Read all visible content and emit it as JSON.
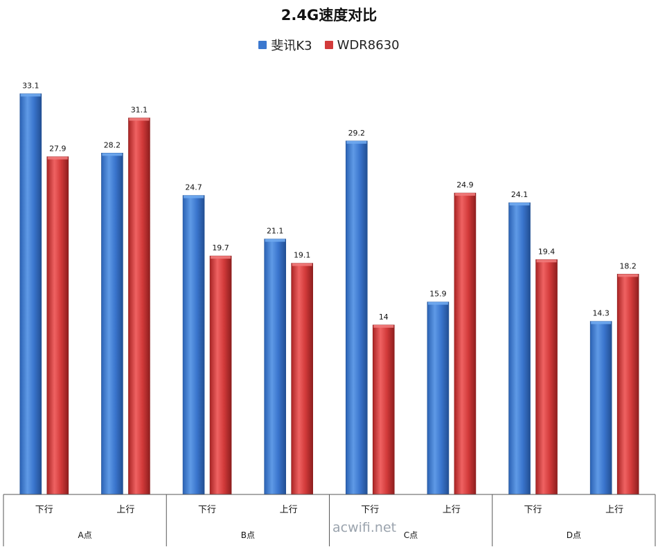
{
  "chart_data": {
    "type": "bar",
    "title": "2.4G速度对比",
    "groups": [
      "A点",
      "B点",
      "C点",
      "D点"
    ],
    "subcategories": [
      "下行",
      "上行"
    ],
    "categories": [
      "A点 下行",
      "A点 上行",
      "B点 下行",
      "B点 上行",
      "C点 下行",
      "C点 上行",
      "D点 下行",
      "D点 上行"
    ],
    "series": [
      {
        "name": "斐讯K3",
        "color": "#3b78cf",
        "values": [
          33.1,
          28.2,
          24.7,
          21.1,
          29.2,
          15.9,
          24.1,
          14.3
        ]
      },
      {
        "name": "WDR8630",
        "color": "#d23a3a",
        "values": [
          27.9,
          31.1,
          19.7,
          19.1,
          14,
          24.9,
          19.4,
          18.2
        ]
      }
    ],
    "ylim": [
      0,
      34.5
    ],
    "grid": false,
    "legend": "top-center"
  },
  "watermark": "acwifi.net"
}
